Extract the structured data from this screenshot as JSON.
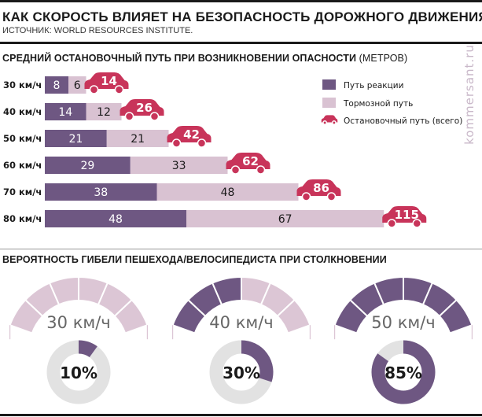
{
  "header": {
    "title": "КАК СКОРОСТЬ ВЛИЯЕТ НА БЕЗОПАСНОСТЬ ДОРОЖНОГО ДВИЖЕНИЯ",
    "source": "ИСТОЧНИК: WORLD RESOURCES INSTITUTE."
  },
  "section1": {
    "title": "СРЕДНИЙ ОСТАНОВОЧНЫЙ ПУТЬ ПРИ ВОЗНИКНОВЕНИИ ОПАСНОСТИ",
    "unit": "(МЕТРОВ)"
  },
  "section2": {
    "title": "ВЕРОЯТНОСТЬ ГИБЕЛИ ПЕШЕХОДА/ВЕЛОСИПЕДИСТА ПРИ СТОЛКНОВЕНИИ"
  },
  "watermark": "kommersant.ru",
  "colors": {
    "reaction": "#6e5782",
    "braking": "#d9c2d2",
    "car": "#c8345a",
    "ring_bg": "#e2e2e2",
    "text": "#1a1a1a"
  },
  "chart_data": [
    {
      "type": "bar",
      "stacked": true,
      "orientation": "horizontal",
      "categories": [
        "30 км/ч",
        "40 км/ч",
        "50 км/ч",
        "60 км/ч",
        "70 км/ч",
        "80 км/ч"
      ],
      "series": [
        {
          "name": "Путь реакции",
          "values": [
            8,
            14,
            21,
            29,
            38,
            48
          ],
          "color": "#6e5782"
        },
        {
          "name": "Тормозной путь",
          "values": [
            6,
            12,
            21,
            33,
            48,
            67
          ],
          "color": "#d9c2d2"
        }
      ],
      "totals": {
        "name": "Остановочный путь (всего)",
        "values": [
          14,
          26,
          42,
          62,
          86,
          115
        ],
        "icon": "car-icon",
        "color": "#c8345a"
      },
      "legend": "right",
      "grid": false
    },
    {
      "type": "gauge",
      "items": [
        {
          "speed": "30 км/ч",
          "value": 10,
          "label": "10%"
        },
        {
          "speed": "40 км/ч",
          "value": 30,
          "label": "30%"
        },
        {
          "speed": "50 км/ч",
          "value": 85,
          "label": "85%"
        }
      ],
      "gauge_active_segments": [
        0,
        3,
        6
      ],
      "gauge_segments_total": 6
    }
  ]
}
